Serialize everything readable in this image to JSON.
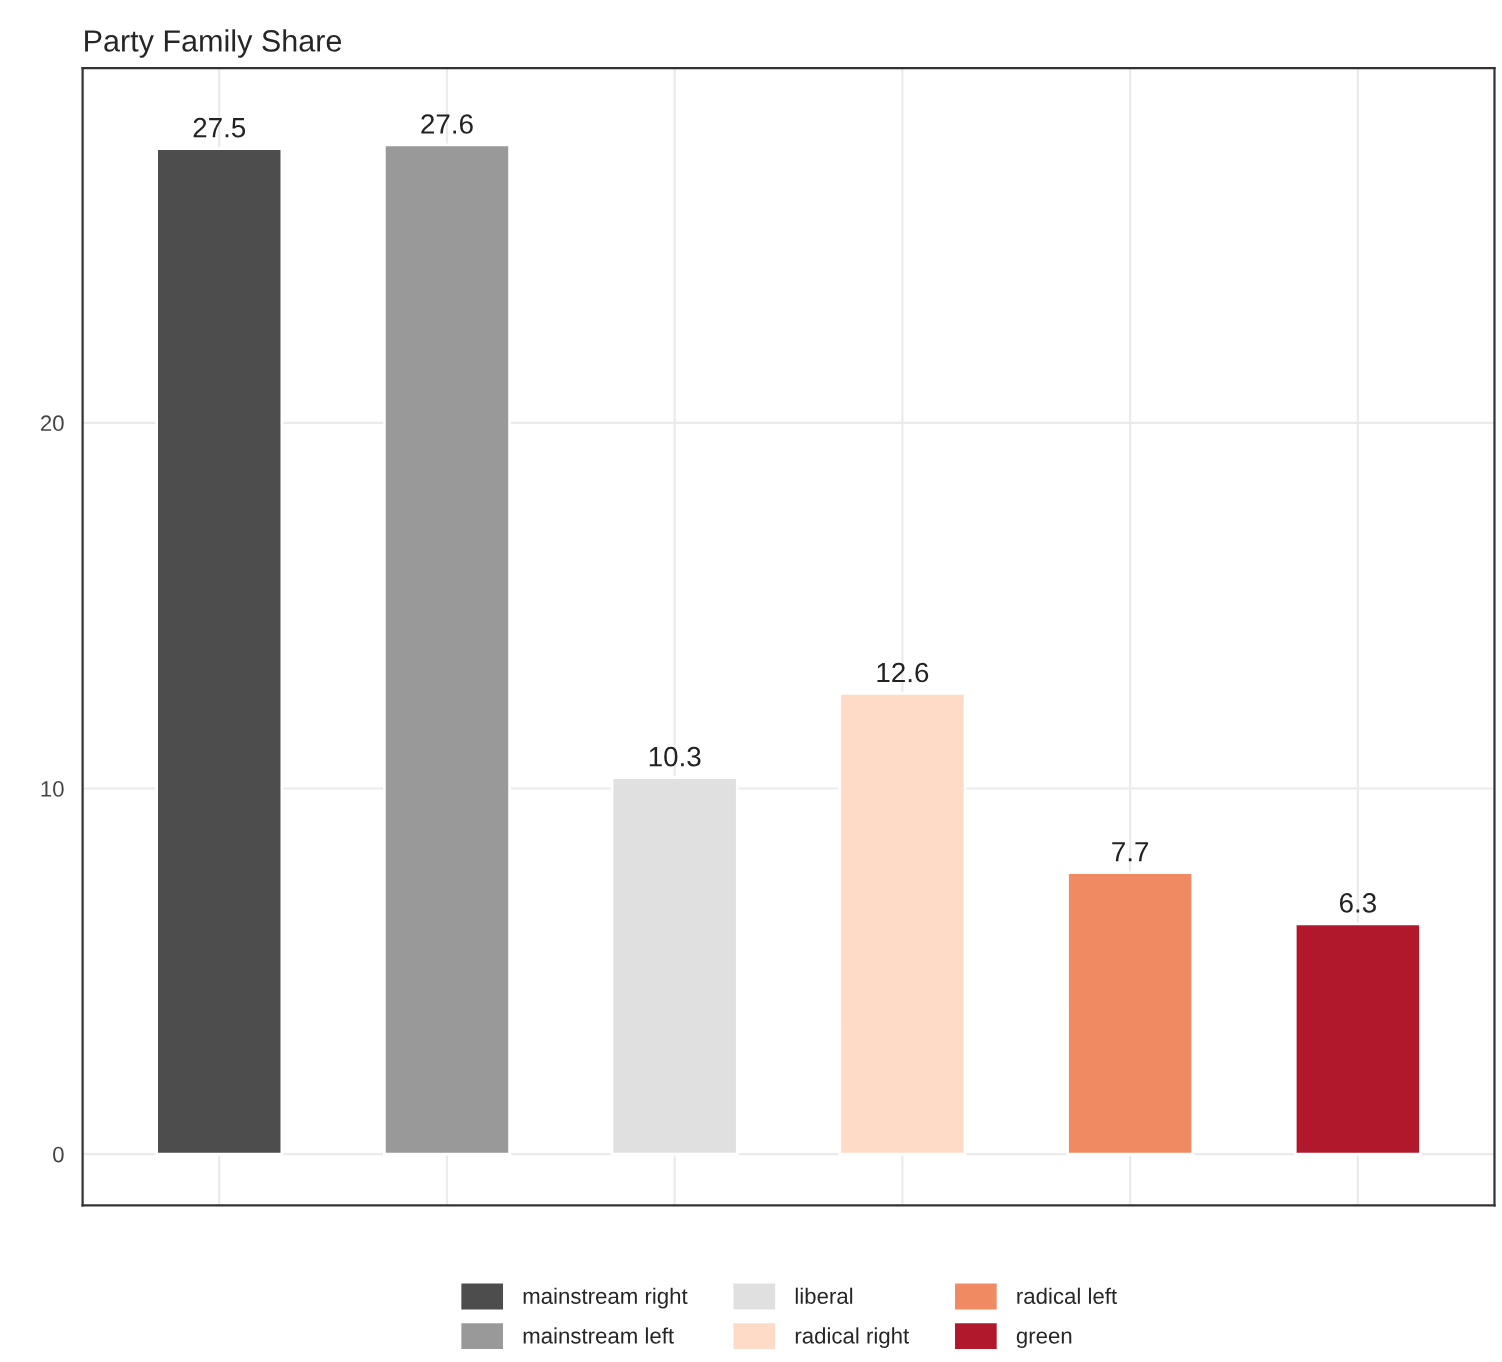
{
  "chart_data": {
    "type": "bar",
    "title": "Party Family Share",
    "categories": [
      null,
      null,
      null,
      null,
      null,
      null
    ],
    "series": [
      {
        "name": "mainstream right",
        "color": "#4d4d4d",
        "values": [
          27.5,
          null,
          null,
          null,
          null,
          null
        ]
      },
      {
        "name": "mainstream left",
        "color": "#999999",
        "values": [
          null,
          27.6,
          null,
          null,
          null,
          null
        ]
      },
      {
        "name": "liberal",
        "color": "#e0e0e0",
        "values": [
          null,
          null,
          10.3,
          null,
          null,
          null
        ]
      },
      {
        "name": "radical right",
        "color": "#fddbc7",
        "values": [
          null,
          null,
          null,
          12.6,
          null,
          null
        ]
      },
      {
        "name": "radical left",
        "color": "#ef8a62",
        "values": [
          null,
          null,
          null,
          null,
          7.7,
          null
        ]
      },
      {
        "name": "green",
        "color": "#b2182b",
        "values": [
          null,
          null,
          null,
          null,
          null,
          6.3
        ]
      }
    ],
    "ylim": [
      -1.4,
      29.7
    ],
    "yticks": [
      0,
      10,
      20
    ],
    "grid": true,
    "legend": "bottom",
    "data_labels": true
  }
}
